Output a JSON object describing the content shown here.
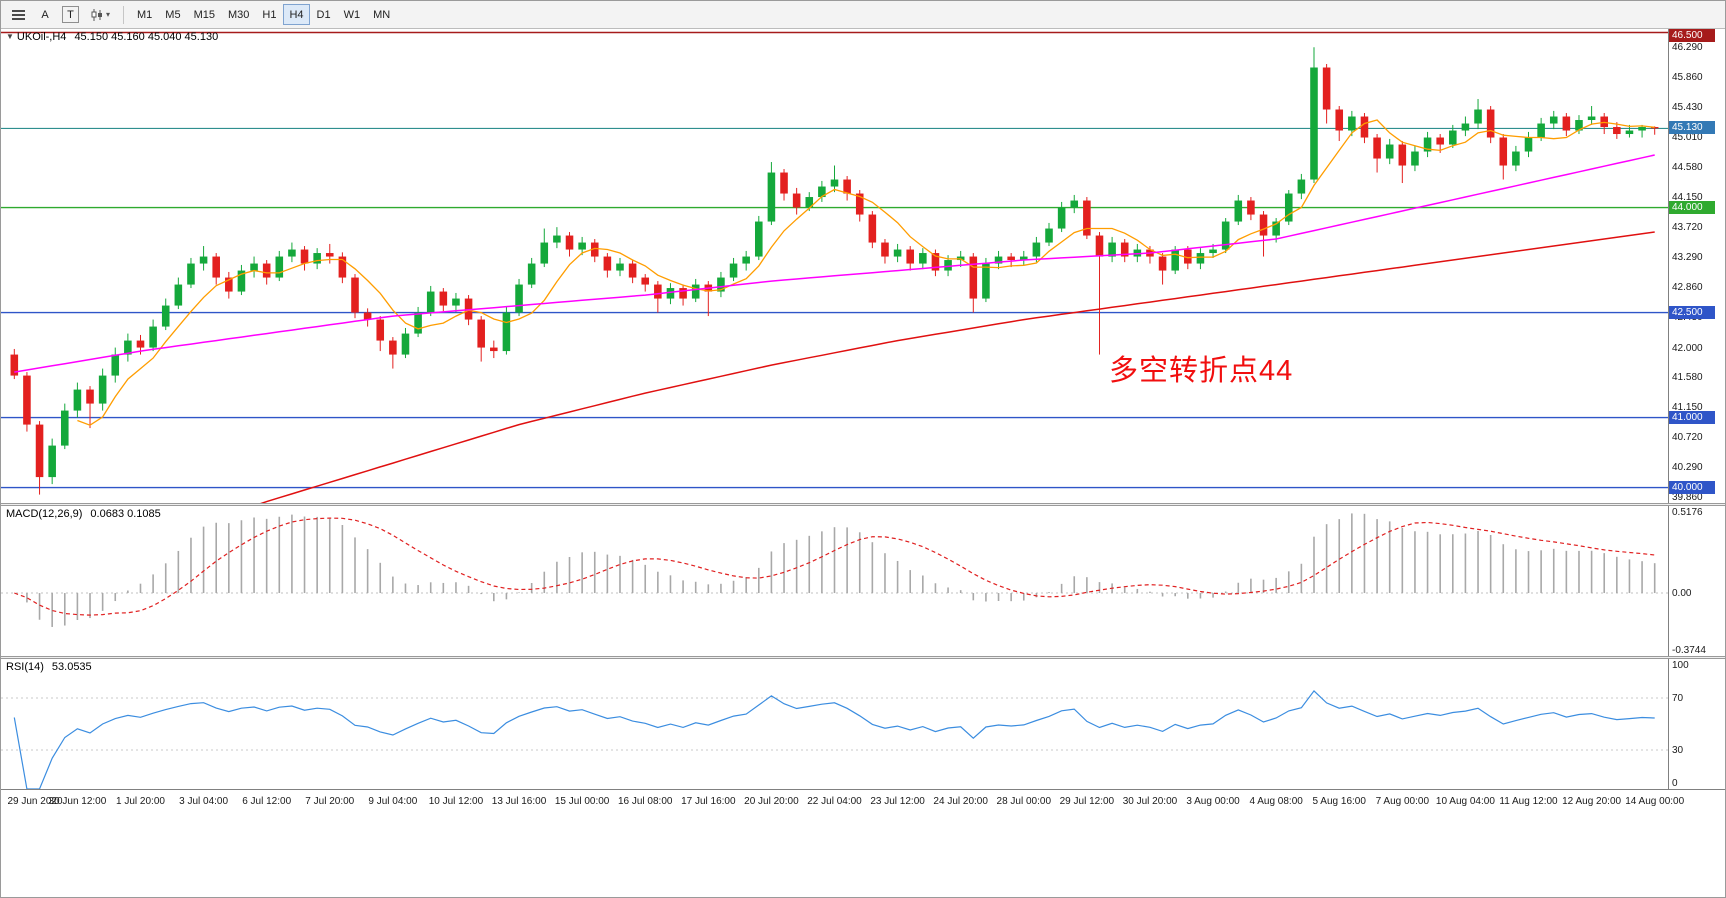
{
  "icons": {
    "symbol_marker": "▼",
    "caret": "▾"
  },
  "toolbar": {
    "a_label": "A",
    "t_label": "T",
    "timeframes": [
      "M1",
      "M5",
      "M15",
      "M30",
      "H1",
      "H4",
      "D1",
      "W1",
      "MN"
    ],
    "active_timeframe": "H4"
  },
  "chart_data": {
    "type": "candlestick",
    "symbol": "UKOil-",
    "timeframe": "H4",
    "title": "UKOil-,H4",
    "ohlc_label": "45.150 45.160 45.040 45.130",
    "y_range": [
      39.78,
      46.55
    ],
    "y_ticks": [
      "46.290",
      "45.860",
      "45.430",
      "45.010",
      "44.580",
      "44.150",
      "43.720",
      "43.290",
      "42.860",
      "42.430",
      "42.000",
      "41.580",
      "41.150",
      "40.720",
      "40.290",
      "39.860"
    ],
    "x_labels": [
      "29 Jun 2020",
      "30 Jun 12:00",
      "1 Jul 20:00",
      "3 Jul 04:00",
      "6 Jul 12:00",
      "7 Jul 20:00",
      "9 Jul 04:00",
      "10 Jul 12:00",
      "13 Jul 16:00",
      "15 Jul 00:00",
      "16 Jul 08:00",
      "17 Jul 16:00",
      "20 Jul 20:00",
      "22 Jul 04:00",
      "23 Jul 12:00",
      "24 Jul 20:00",
      "28 Jul 00:00",
      "29 Jul 12:00",
      "30 Jul 20:00",
      "3 Aug 00:00",
      "4 Aug 08:00",
      "5 Aug 16:00",
      "7 Aug 00:00",
      "10 Aug 04:00",
      "11 Aug 12:00",
      "12 Aug 20:00",
      "14 Aug 00:00"
    ],
    "candles_per_label": 5,
    "colors": {
      "up": "#14a83b",
      "down": "#e3201f"
    },
    "h_lines": [
      {
        "value": 46.5,
        "label": "46.500",
        "color": "#a61b1b"
      },
      {
        "value": 44.0,
        "label": "44.000",
        "color": "#2faa2f"
      },
      {
        "value": 42.5,
        "label": "42.500",
        "color": "#2f55c8"
      },
      {
        "value": 41.0,
        "label": "41.000",
        "color": "#2f55c8"
      },
      {
        "value": 40.0,
        "label": "40.000",
        "color": "#2f55c8"
      }
    ],
    "current_price": {
      "value": 45.13,
      "label": "45.130",
      "line_color": "#2f8f8f",
      "tag_color": "#3379b5"
    },
    "annotation": {
      "text": "多空转折点44",
      "color": "#f10e0e"
    },
    "ma": {
      "fast": {
        "color": "#ff9d00",
        "period": 6
      },
      "mid": {
        "color": "#ff00ff",
        "waypoints": [
          41.65,
          41.95,
          42.2,
          42.45,
          42.6,
          42.75,
          42.95,
          43.1,
          43.25,
          43.35,
          43.55,
          43.95,
          44.35,
          44.75
        ]
      },
      "slow": {
        "color": "#e01010",
        "waypoints": [
          38.6,
          39.2,
          39.8,
          40.35,
          40.9,
          41.35,
          41.75,
          42.1,
          42.4,
          42.65,
          42.9,
          43.15,
          43.4,
          43.65
        ]
      }
    },
    "candles": [
      [
        41.9,
        41.98,
        41.55,
        41.6
      ],
      [
        41.6,
        41.65,
        40.8,
        40.9
      ],
      [
        40.9,
        40.95,
        39.9,
        40.15
      ],
      [
        40.15,
        40.7,
        40.05,
        40.6
      ],
      [
        40.6,
        41.2,
        40.55,
        41.1
      ],
      [
        41.1,
        41.5,
        41.0,
        41.4
      ],
      [
        41.4,
        41.45,
        40.85,
        41.2
      ],
      [
        41.2,
        41.7,
        41.1,
        41.6
      ],
      [
        41.6,
        42.0,
        41.5,
        41.9
      ],
      [
        41.9,
        42.2,
        41.8,
        42.1
      ],
      [
        42.1,
        42.18,
        41.9,
        42.0
      ],
      [
        42.0,
        42.4,
        41.95,
        42.3
      ],
      [
        42.3,
        42.7,
        42.25,
        42.6
      ],
      [
        42.6,
        43.0,
        42.55,
        42.9
      ],
      [
        42.9,
        43.28,
        42.85,
        43.2
      ],
      [
        43.2,
        43.45,
        43.1,
        43.3
      ],
      [
        43.3,
        43.35,
        42.9,
        43.0
      ],
      [
        43.0,
        43.08,
        42.7,
        42.8
      ],
      [
        42.8,
        43.18,
        42.75,
        43.1
      ],
      [
        43.1,
        43.3,
        43.0,
        43.2
      ],
      [
        43.2,
        43.25,
        42.9,
        43.0
      ],
      [
        43.0,
        43.38,
        42.95,
        43.3
      ],
      [
        43.3,
        43.5,
        43.22,
        43.4
      ],
      [
        43.4,
        43.45,
        43.1,
        43.2
      ],
      [
        43.2,
        43.42,
        43.12,
        43.35
      ],
      [
        43.35,
        43.48,
        43.2,
        43.3
      ],
      [
        43.3,
        43.36,
        42.92,
        43.0
      ],
      [
        43.0,
        43.05,
        42.42,
        42.5
      ],
      [
        42.5,
        42.56,
        42.3,
        42.4
      ],
      [
        42.4,
        42.45,
        41.95,
        42.1
      ],
      [
        42.1,
        42.15,
        41.7,
        41.9
      ],
      [
        41.9,
        42.28,
        41.85,
        42.2
      ],
      [
        42.2,
        42.58,
        42.15,
        42.5
      ],
      [
        42.5,
        42.88,
        42.45,
        42.8
      ],
      [
        42.8,
        42.85,
        42.52,
        42.6
      ],
      [
        42.6,
        42.78,
        42.5,
        42.7
      ],
      [
        42.7,
        42.75,
        42.32,
        42.4
      ],
      [
        42.4,
        42.45,
        41.8,
        42.0
      ],
      [
        42.0,
        42.1,
        41.85,
        41.95
      ],
      [
        41.95,
        42.58,
        41.9,
        42.5
      ],
      [
        42.5,
        42.98,
        42.45,
        42.9
      ],
      [
        42.9,
        43.28,
        42.85,
        43.2
      ],
      [
        43.2,
        43.7,
        43.15,
        43.5
      ],
      [
        43.5,
        43.72,
        43.42,
        43.6
      ],
      [
        43.6,
        43.65,
        43.3,
        43.4
      ],
      [
        43.4,
        43.58,
        43.32,
        43.5
      ],
      [
        43.5,
        43.55,
        43.22,
        43.3
      ],
      [
        43.3,
        43.35,
        43.0,
        43.1
      ],
      [
        43.1,
        43.28,
        43.02,
        43.2
      ],
      [
        43.2,
        43.25,
        42.92,
        43.0
      ],
      [
        43.0,
        43.05,
        42.8,
        42.9
      ],
      [
        42.9,
        42.95,
        42.5,
        42.7
      ],
      [
        42.7,
        42.92,
        42.62,
        42.85
      ],
      [
        42.85,
        42.9,
        42.6,
        42.7
      ],
      [
        42.7,
        42.98,
        42.65,
        42.9
      ],
      [
        42.9,
        42.95,
        42.45,
        42.8
      ],
      [
        42.8,
        43.08,
        42.72,
        43.0
      ],
      [
        43.0,
        43.28,
        42.95,
        43.2
      ],
      [
        43.2,
        43.38,
        43.1,
        43.3
      ],
      [
        43.3,
        43.88,
        43.25,
        43.8
      ],
      [
        43.8,
        44.65,
        43.75,
        44.5
      ],
      [
        44.5,
        44.55,
        44.1,
        44.2
      ],
      [
        44.2,
        44.28,
        43.9,
        44.0
      ],
      [
        44.0,
        44.22,
        43.95,
        44.15
      ],
      [
        44.15,
        44.38,
        44.08,
        44.3
      ],
      [
        44.3,
        44.6,
        44.22,
        44.4
      ],
      [
        44.4,
        44.45,
        44.1,
        44.2
      ],
      [
        44.2,
        44.25,
        43.8,
        43.9
      ],
      [
        43.9,
        43.95,
        43.42,
        43.5
      ],
      [
        43.5,
        43.55,
        43.2,
        43.3
      ],
      [
        43.3,
        43.48,
        43.22,
        43.4
      ],
      [
        43.4,
        43.45,
        43.1,
        43.2
      ],
      [
        43.2,
        43.42,
        43.12,
        43.35
      ],
      [
        43.35,
        43.4,
        43.02,
        43.1
      ],
      [
        43.1,
        43.32,
        43.02,
        43.25
      ],
      [
        43.25,
        43.38,
        43.15,
        43.3
      ],
      [
        43.3,
        43.35,
        42.5,
        42.7
      ],
      [
        42.7,
        43.28,
        42.65,
        43.2
      ],
      [
        43.2,
        43.38,
        43.12,
        43.3
      ],
      [
        43.3,
        43.35,
        43.15,
        43.25
      ],
      [
        43.25,
        43.38,
        43.18,
        43.3
      ],
      [
        43.3,
        43.58,
        43.22,
        43.5
      ],
      [
        43.5,
        43.78,
        43.45,
        43.7
      ],
      [
        43.7,
        44.08,
        43.65,
        44.0
      ],
      [
        44.0,
        44.18,
        43.92,
        44.1
      ],
      [
        44.1,
        44.15,
        43.55,
        43.6
      ],
      [
        43.6,
        43.65,
        41.9,
        43.3
      ],
      [
        43.3,
        43.58,
        43.22,
        43.5
      ],
      [
        43.5,
        43.55,
        43.22,
        43.3
      ],
      [
        43.3,
        43.48,
        43.22,
        43.4
      ],
      [
        43.4,
        43.45,
        43.2,
        43.3
      ],
      [
        43.3,
        43.35,
        42.9,
        43.1
      ],
      [
        43.1,
        43.45,
        43.05,
        43.4
      ],
      [
        43.4,
        43.45,
        43.12,
        43.2
      ],
      [
        43.2,
        43.42,
        43.12,
        43.35
      ],
      [
        43.35,
        43.48,
        43.28,
        43.4
      ],
      [
        43.4,
        43.85,
        43.35,
        43.8
      ],
      [
        43.8,
        44.18,
        43.75,
        44.1
      ],
      [
        44.1,
        44.15,
        43.82,
        43.9
      ],
      [
        43.9,
        43.95,
        43.3,
        43.6
      ],
      [
        43.6,
        43.85,
        43.5,
        43.8
      ],
      [
        43.8,
        44.25,
        43.75,
        44.2
      ],
      [
        44.2,
        44.48,
        44.12,
        44.4
      ],
      [
        44.4,
        46.29,
        44.35,
        46.0
      ],
      [
        46.0,
        46.05,
        45.2,
        45.4
      ],
      [
        45.4,
        45.45,
        44.95,
        45.1
      ],
      [
        45.1,
        45.38,
        45.02,
        45.3
      ],
      [
        45.3,
        45.35,
        44.92,
        45.0
      ],
      [
        45.0,
        45.05,
        44.5,
        44.7
      ],
      [
        44.7,
        44.98,
        44.62,
        44.9
      ],
      [
        44.9,
        44.95,
        44.35,
        44.6
      ],
      [
        44.6,
        44.88,
        44.52,
        44.8
      ],
      [
        44.8,
        45.08,
        44.72,
        45.0
      ],
      [
        45.0,
        45.05,
        44.78,
        44.9
      ],
      [
        44.9,
        45.18,
        44.85,
        45.1
      ],
      [
        45.1,
        45.3,
        45.02,
        45.2
      ],
      [
        45.2,
        45.55,
        45.12,
        45.4
      ],
      [
        45.4,
        45.45,
        44.92,
        45.0
      ],
      [
        45.0,
        45.05,
        44.4,
        44.6
      ],
      [
        44.6,
        44.88,
        44.52,
        44.8
      ],
      [
        44.8,
        45.08,
        44.72,
        45.0
      ],
      [
        45.0,
        45.28,
        44.95,
        45.2
      ],
      [
        45.2,
        45.38,
        45.12,
        45.3
      ],
      [
        45.3,
        45.35,
        45.02,
        45.1
      ],
      [
        45.1,
        45.32,
        45.05,
        45.25
      ],
      [
        45.25,
        45.45,
        45.18,
        45.3
      ],
      [
        45.3,
        45.35,
        45.05,
        45.15
      ],
      [
        45.15,
        45.22,
        44.98,
        45.05
      ],
      [
        45.05,
        45.18,
        45.0,
        45.1
      ],
      [
        45.1,
        45.18,
        45.0,
        45.15
      ],
      [
        45.15,
        45.16,
        45.04,
        45.13
      ]
    ],
    "macd": {
      "label": "MACD(12,26,9)",
      "value_text": "0.0683 0.1085",
      "fast": 12,
      "slow": 26,
      "signal": 9,
      "y_ticks": [
        "0.5176",
        "0.00",
        "-0.3744"
      ],
      "y_range": [
        -0.3744,
        0.5176
      ],
      "hist_color": "#a8a8a8",
      "signal_color": "#e02020"
    },
    "rsi": {
      "label": "RSI(14)",
      "value_text": "53.0535",
      "period": 14,
      "levels": [
        70,
        30
      ],
      "y_ticks": [
        "100",
        "70",
        "30",
        "0"
      ],
      "y_range": [
        0,
        100
      ],
      "color": "#3b8de0",
      "level_color": "#c8c8c8"
    }
  }
}
